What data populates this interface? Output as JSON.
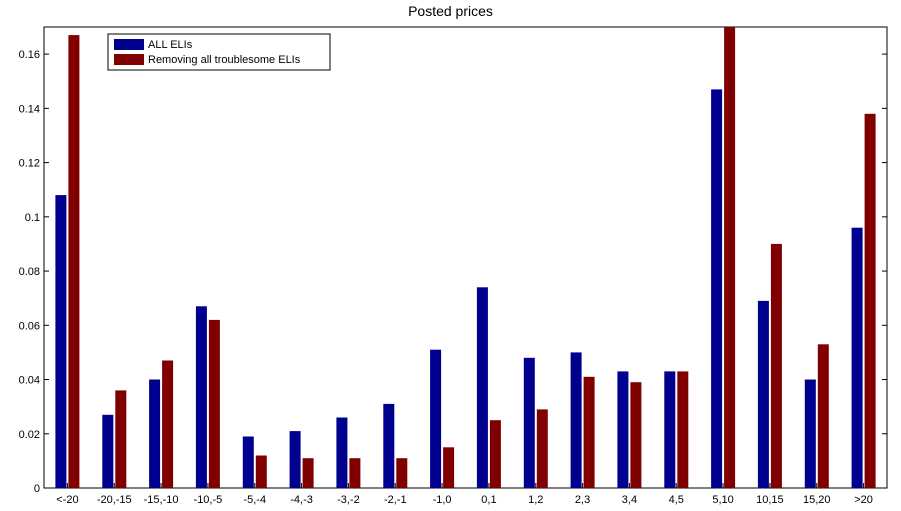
{
  "chart_data": {
    "type": "bar",
    "title": "Posted prices",
    "xlabel": "",
    "ylabel": "",
    "ylim": [
      0,
      0.17
    ],
    "yticks": [
      0,
      0.02,
      0.04,
      0.06,
      0.08,
      0.1,
      0.12,
      0.14,
      0.16
    ],
    "ytick_labels": [
      "0",
      "0.02",
      "0.04",
      "0.06",
      "0.08",
      "0.1",
      "0.12",
      "0.14",
      "0.16"
    ],
    "categories": [
      "<-20",
      "-20,-15",
      "-15,-10",
      "-10,-5",
      "-5,-4",
      "-4,-3",
      "-3,-2",
      "-2,-1",
      "-1,0",
      "0,1",
      "1,2",
      "2,3",
      "3,4",
      "4,5",
      "5,10",
      "10,15",
      "15,20",
      ">20"
    ],
    "series": [
      {
        "name": "ALL ELIs",
        "color": "#00008f",
        "values": [
          0.108,
          0.027,
          0.04,
          0.067,
          0.019,
          0.021,
          0.026,
          0.031,
          0.051,
          0.074,
          0.048,
          0.05,
          0.043,
          0.043,
          0.147,
          0.069,
          0.04,
          0.096
        ]
      },
      {
        "name": "Removing all troublesome ELIs",
        "color": "#800000",
        "values": [
          0.167,
          0.036,
          0.047,
          0.062,
          0.012,
          0.011,
          0.011,
          0.011,
          0.015,
          0.025,
          0.029,
          0.041,
          0.039,
          0.043,
          0.17,
          0.09,
          0.053,
          0.138
        ]
      }
    ],
    "grid": false,
    "legend_position": "top-left"
  }
}
